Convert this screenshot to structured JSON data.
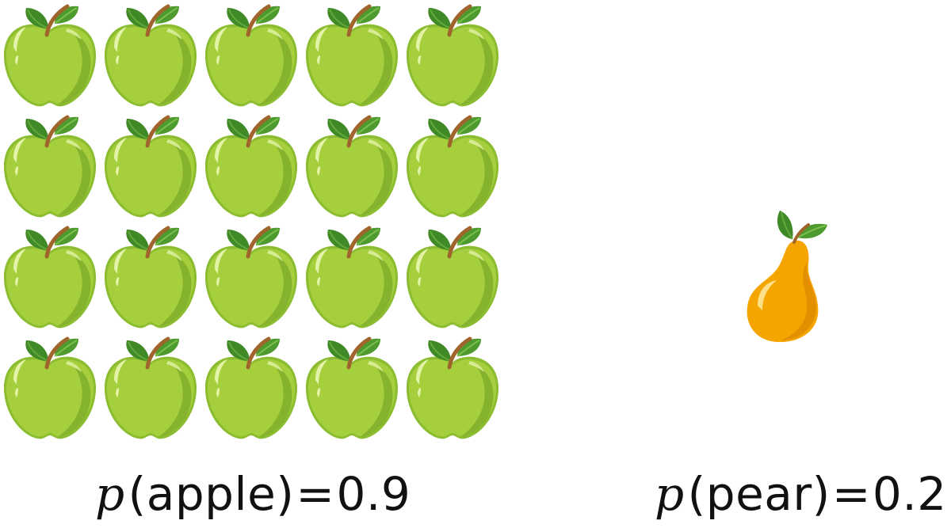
{
  "icons": {
    "apple": "green-apple-icon",
    "pear": "pear-icon"
  },
  "apples": {
    "count": 20,
    "rows": 4,
    "cols": 5
  },
  "pears": {
    "count": 1
  },
  "colors": {
    "apple_body": "#a6cf3d",
    "apple_shade": "#7fae2a",
    "apple_outline": "#8cbd31",
    "apple_highlight": "#e3f3a8",
    "leaf": "#3f8a26",
    "leaf_light": "#62a83b",
    "stem": "#a0652c",
    "pear_body": "#f5a500",
    "pear_shade": "#e08a00",
    "pear_highlight": "#ffe08a"
  },
  "captions": {
    "apple": {
      "func": "p",
      "arg": "apple",
      "eq": "=",
      "value": "0.9"
    },
    "pear": {
      "func": "p",
      "arg": "pear",
      "eq": "=",
      "value": "0.2"
    }
  }
}
